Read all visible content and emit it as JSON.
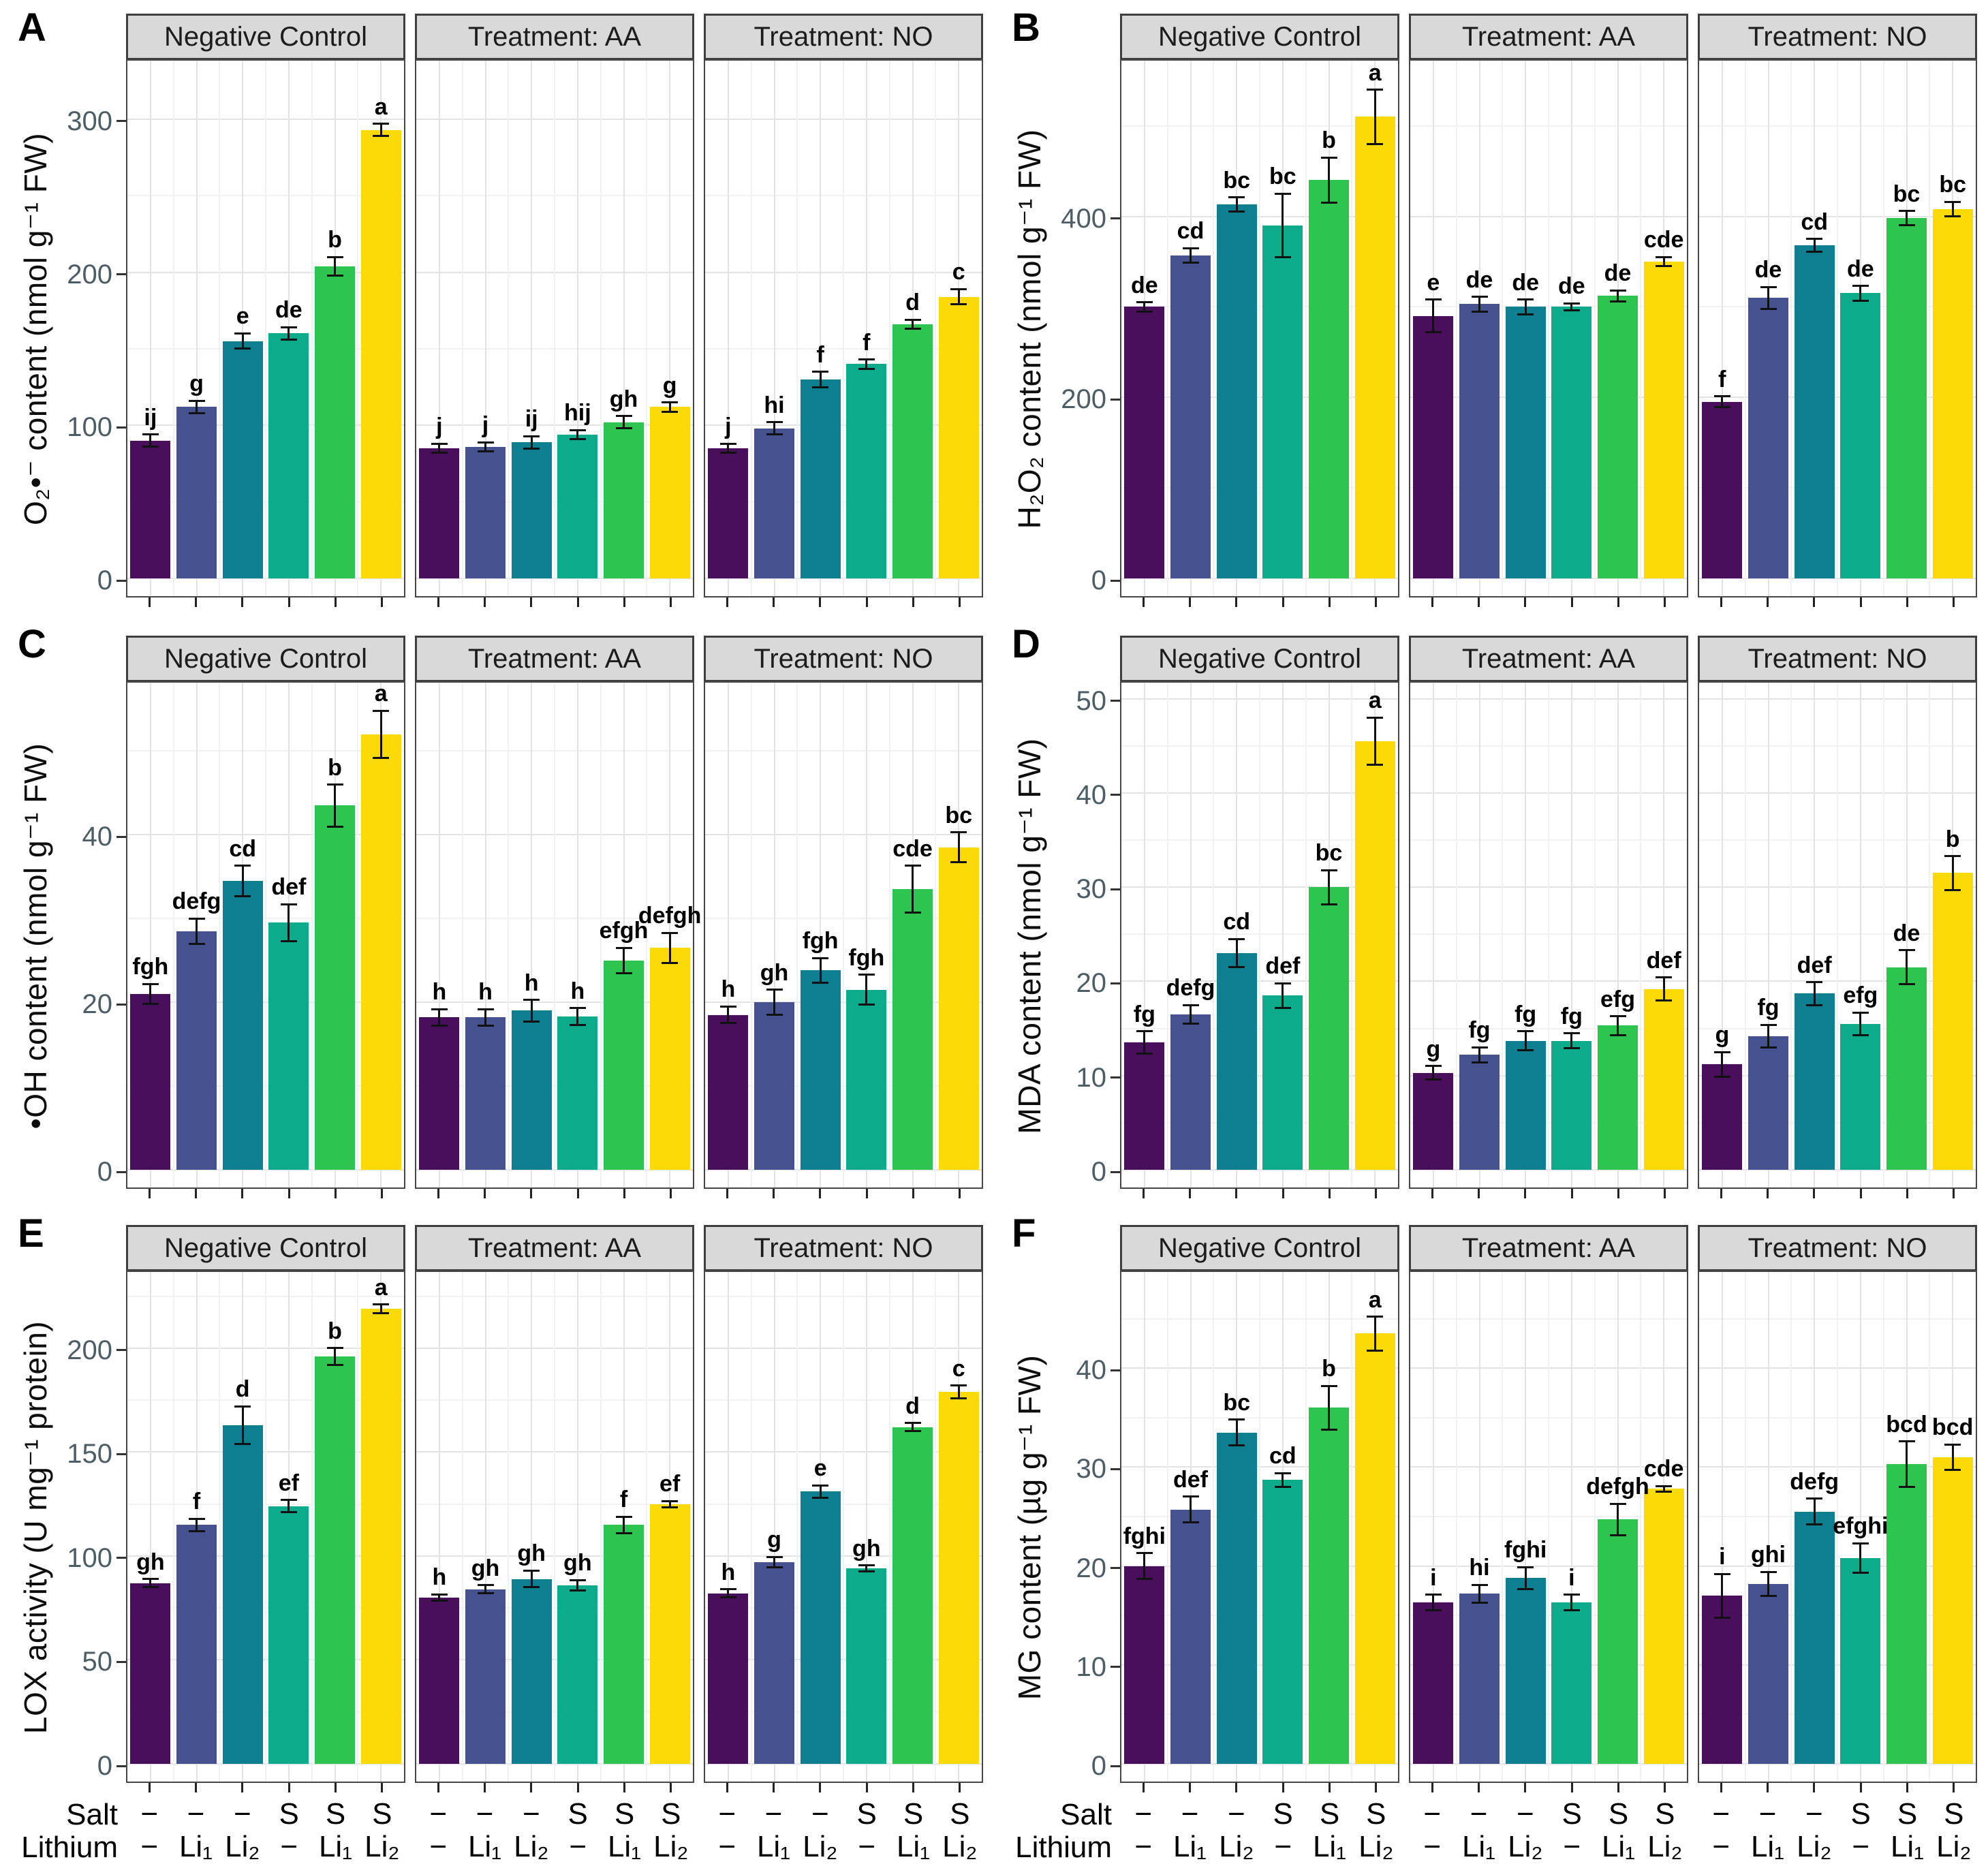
{
  "figure": {
    "panel_letters": [
      "A",
      "B",
      "C",
      "D",
      "E",
      "F"
    ],
    "facet_labels": [
      "Negative Control",
      "Treatment: AA",
      "Treatment: NO"
    ],
    "x_axis": {
      "row1_label": "Salt",
      "row2_label": "Lithium",
      "row1_values": [
        "−",
        "−",
        "−",
        "S",
        "S",
        "S"
      ],
      "row2_values": [
        "−",
        "Li₁",
        "Li₂",
        "−",
        "Li₁",
        "Li₂"
      ]
    },
    "colors": {
      "bar_colors": [
        "#4a0f5c",
        "#46518f",
        "#0e7f90",
        "#0cab8c",
        "#2dc44f",
        "#fdd905"
      ],
      "strip_bg": "#d9d9d9",
      "panel_border": "#474747",
      "grid_major": "#e3e3e3",
      "grid_minor": "#f1f1f1",
      "tick_label": "#4d5d66",
      "error_bar": "#111111"
    }
  },
  "chart_data": [
    {
      "id": "A",
      "type": "bar",
      "ylabel": "O₂•⁻ content (nmol g⁻¹ FW)",
      "yticks": [
        0,
        100,
        200,
        300
      ],
      "ylim": [
        0,
        340
      ],
      "categories_salt": [
        "−",
        "−",
        "−",
        "S",
        "S",
        "S"
      ],
      "categories_lithium": [
        "−",
        "Li₁",
        "Li₂",
        "−",
        "Li₁",
        "Li₂"
      ],
      "facets": [
        {
          "label": "Negative Control",
          "values": [
            90,
            112,
            155,
            160,
            204,
            293
          ],
          "errors": [
            4,
            4,
            5,
            4,
            6,
            4
          ],
          "letters": [
            "ij",
            "g",
            "e",
            "de",
            "b",
            "a"
          ]
        },
        {
          "label": "Treatment: AA",
          "values": [
            85,
            86,
            89,
            94,
            102,
            112
          ],
          "errors": [
            3,
            3,
            4,
            3,
            4,
            3
          ],
          "letters": [
            "j",
            "j",
            "ij",
            "hij",
            "gh",
            "g"
          ]
        },
        {
          "label": "Treatment: NO",
          "values": [
            85,
            98,
            130,
            140,
            166,
            184
          ],
          "errors": [
            3,
            4,
            5,
            3,
            3,
            5
          ],
          "letters": [
            "j",
            "hi",
            "f",
            "f",
            "d",
            "c"
          ]
        }
      ]
    },
    {
      "id": "B",
      "type": "bar",
      "ylabel": "H₂O₂ content (nmol g⁻¹ FW)",
      "yticks": [
        0,
        200,
        400
      ],
      "ylim": [
        0,
        575
      ],
      "categories_salt": [
        "−",
        "−",
        "−",
        "S",
        "S",
        "S"
      ],
      "categories_lithium": [
        "−",
        "Li₁",
        "Li₂",
        "−",
        "Li₁",
        "Li₂"
      ],
      "facets": [
        {
          "label": "Negative Control",
          "values": [
            300,
            357,
            413,
            390,
            440,
            510
          ],
          "errors": [
            5,
            8,
            8,
            35,
            25,
            30
          ],
          "letters": [
            "de",
            "cd",
            "bc",
            "bc",
            "b",
            "a"
          ]
        },
        {
          "label": "Treatment: AA",
          "values": [
            290,
            303,
            300,
            300,
            312,
            350
          ],
          "errors": [
            18,
            8,
            8,
            4,
            6,
            5
          ],
          "letters": [
            "e",
            "de",
            "de",
            "de",
            "de",
            "cde"
          ]
        },
        {
          "label": "Treatment: NO",
          "values": [
            195,
            310,
            368,
            315,
            398,
            408
          ],
          "errors": [
            6,
            12,
            7,
            8,
            8,
            8
          ],
          "letters": [
            "f",
            "de",
            "cd",
            "de",
            "bc",
            "bc"
          ]
        }
      ]
    },
    {
      "id": "C",
      "type": "bar",
      "ylabel": "•OH content (nmol g⁻¹ FW)",
      "yticks": [
        0,
        20,
        40
      ],
      "ylim": [
        0,
        58.5
      ],
      "categories_salt": [
        "−",
        "−",
        "−",
        "S",
        "S",
        "S"
      ],
      "categories_lithium": [
        "−",
        "Li₁",
        "Li₂",
        "−",
        "Li₁",
        "Li₂"
      ],
      "facets": [
        {
          "label": "Negative Control",
          "values": [
            21,
            28.5,
            34.5,
            29.5,
            43.5,
            52
          ],
          "errors": [
            1.2,
            1.5,
            1.8,
            2.2,
            2.5,
            2.8
          ],
          "letters": [
            "fgh",
            "defg",
            "cd",
            "def",
            "b",
            "a"
          ]
        },
        {
          "label": "Treatment: AA",
          "values": [
            18.2,
            18.2,
            19,
            18.3,
            25,
            26.5
          ],
          "errors": [
            1,
            1,
            1.3,
            1,
            1.5,
            1.8
          ],
          "letters": [
            "h",
            "h",
            "h",
            "h",
            "efgh",
            "defgh"
          ]
        },
        {
          "label": "Treatment: NO",
          "values": [
            18.5,
            20,
            23.8,
            21.5,
            33.5,
            38.5
          ],
          "errors": [
            1,
            1.5,
            1.5,
            1.8,
            2.8,
            1.8
          ],
          "letters": [
            "h",
            "gh",
            "fgh",
            "fgh",
            "cde",
            "bc"
          ]
        }
      ]
    },
    {
      "id": "D",
      "type": "bar",
      "ylabel": "MDA content (nmol g⁻¹ FW)",
      "yticks": [
        0,
        10,
        20,
        30,
        40,
        50
      ],
      "ylim": [
        0,
        52
      ],
      "categories_salt": [
        "−",
        "−",
        "−",
        "S",
        "S",
        "S"
      ],
      "categories_lithium": [
        "−",
        "Li₁",
        "Li₂",
        "−",
        "Li₁",
        "Li₂"
      ],
      "facets": [
        {
          "label": "Negative Control",
          "values": [
            13.5,
            16.5,
            23,
            18.5,
            30,
            45.5
          ],
          "errors": [
            1.2,
            1,
            1.5,
            1.3,
            1.8,
            2.5
          ],
          "letters": [
            "fg",
            "defg",
            "cd",
            "def",
            "bc",
            "a"
          ]
        },
        {
          "label": "Treatment: AA",
          "values": [
            10.3,
            12.2,
            13.7,
            13.7,
            15.3,
            19.2
          ],
          "errors": [
            0.7,
            0.8,
            1,
            0.8,
            1,
            1.2
          ],
          "letters": [
            "g",
            "fg",
            "fg",
            "fg",
            "efg",
            "def"
          ]
        },
        {
          "label": "Treatment: NO",
          "values": [
            11.2,
            14.2,
            18.7,
            15.5,
            21.5,
            31.5
          ],
          "errors": [
            1.3,
            1.2,
            1.2,
            1.2,
            1.8,
            1.8
          ],
          "letters": [
            "g",
            "fg",
            "def",
            "efg",
            "de",
            "b"
          ]
        }
      ]
    },
    {
      "id": "E",
      "type": "bar",
      "ylabel": "LOX activity (U mg⁻¹ protein)",
      "yticks": [
        0,
        50,
        100,
        150,
        200
      ],
      "ylim": [
        0,
        238
      ],
      "categories_salt": [
        "−",
        "−",
        "−",
        "S",
        "S",
        "S"
      ],
      "categories_lithium": [
        "−",
        "Li₁",
        "Li₂",
        "−",
        "Li₁",
        "Li₂"
      ],
      "facets": [
        {
          "label": "Negative Control",
          "values": [
            87,
            115,
            163,
            124,
            196,
            219
          ],
          "errors": [
            2,
            3,
            9,
            3,
            4,
            2
          ],
          "letters": [
            "gh",
            "f",
            "d",
            "ef",
            "b",
            "a"
          ]
        },
        {
          "label": "Treatment: AA",
          "values": [
            80,
            84,
            89,
            86,
            115,
            125
          ],
          "errors": [
            1.5,
            2,
            4,
            2.5,
            4,
            1.5
          ],
          "letters": [
            "h",
            "gh",
            "gh",
            "gh",
            "f",
            "ef"
          ]
        },
        {
          "label": "Treatment: NO",
          "values": [
            82,
            97,
            131,
            94,
            162,
            179
          ],
          "errors": [
            2,
            2.5,
            3,
            1.5,
            2,
            3
          ],
          "letters": [
            "h",
            "g",
            "e",
            "gh",
            "d",
            "c"
          ]
        }
      ]
    },
    {
      "id": "F",
      "type": "bar",
      "ylabel": "MG content (µg g⁻¹ FW)",
      "yticks": [
        0,
        10,
        20,
        30,
        40
      ],
      "ylim": [
        0,
        50
      ],
      "categories_salt": [
        "−",
        "−",
        "−",
        "S",
        "S",
        "S"
      ],
      "categories_lithium": [
        "−",
        "Li₁",
        "Li₂",
        "−",
        "Li₁",
        "Li₂"
      ],
      "facets": [
        {
          "label": "Negative Control",
          "values": [
            20,
            25.7,
            33.5,
            28.7,
            36,
            43.5
          ],
          "errors": [
            1.3,
            1.3,
            1.3,
            0.7,
            2.2,
            1.7
          ],
          "letters": [
            "fghi",
            "def",
            "bc",
            "cd",
            "b",
            "a"
          ]
        },
        {
          "label": "Treatment: AA",
          "values": [
            16.3,
            17.2,
            18.8,
            16.3,
            24.7,
            27.8
          ],
          "errors": [
            0.8,
            0.9,
            1.1,
            0.8,
            1.6,
            0.3
          ],
          "letters": [
            "i",
            "hi",
            "fghi",
            "i",
            "defgh",
            "cde"
          ]
        },
        {
          "label": "Treatment: NO",
          "values": [
            17,
            18.2,
            25.5,
            20.8,
            30.3,
            31
          ],
          "errors": [
            2.2,
            1.2,
            1.3,
            1.5,
            2.3,
            1.3
          ],
          "letters": [
            "i",
            "ghi",
            "defg",
            "efghi",
            "bcd",
            "bcd"
          ]
        }
      ]
    }
  ]
}
